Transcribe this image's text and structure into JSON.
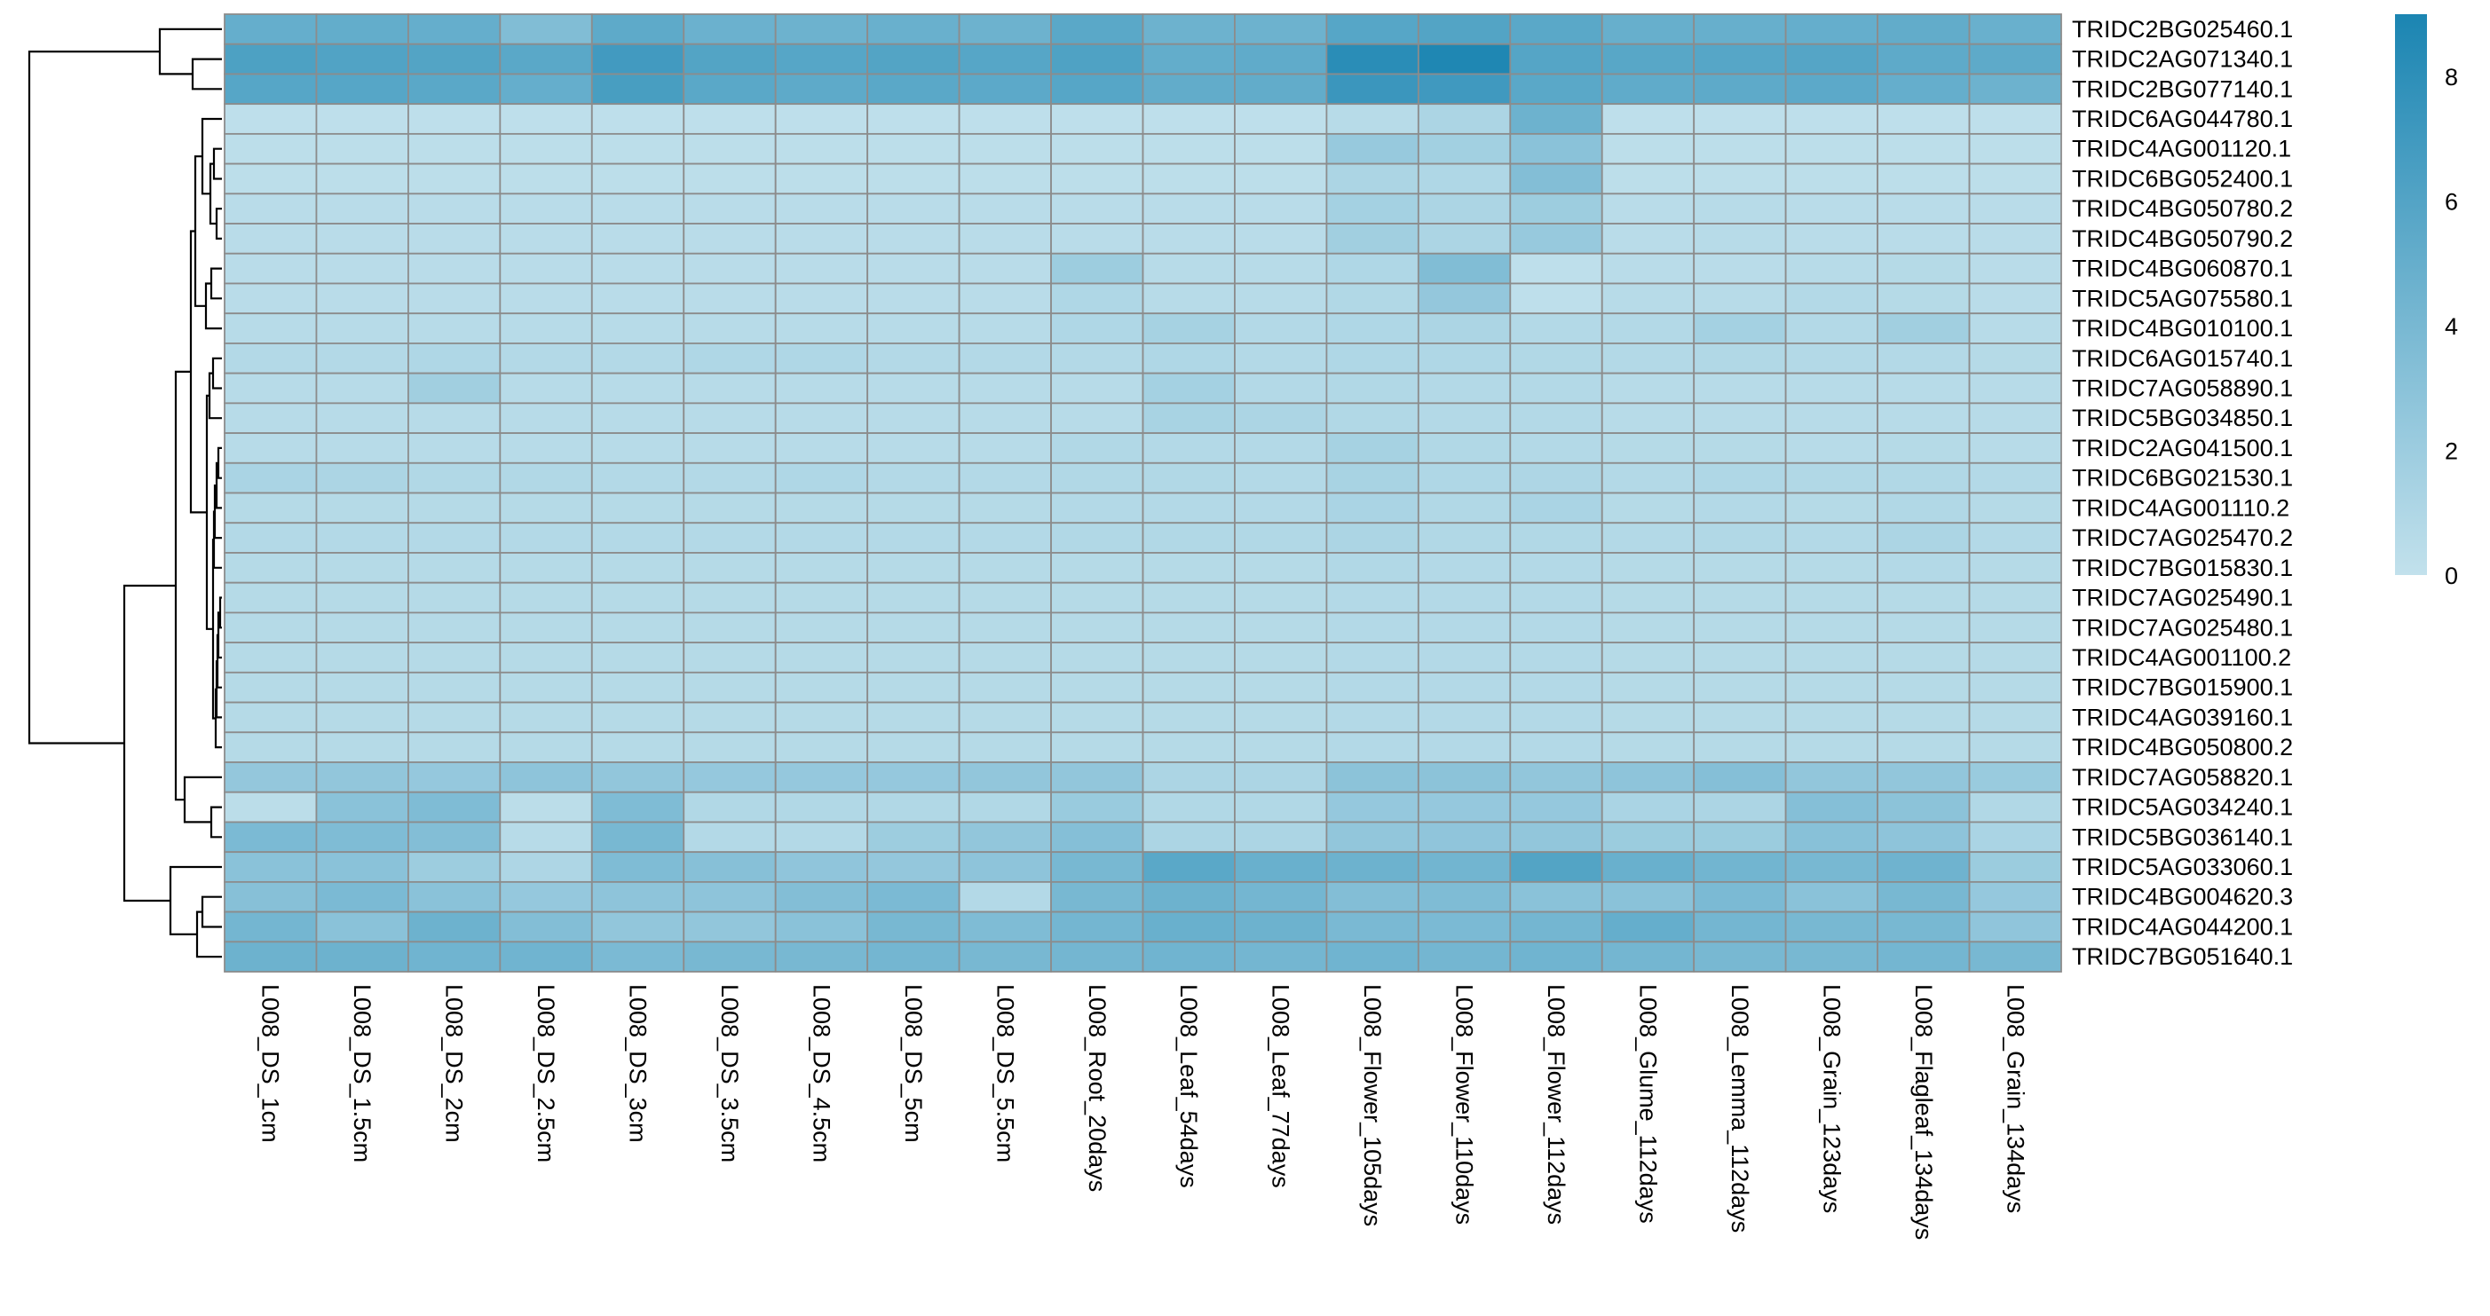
{
  "colors": {
    "low": "#c2e1ec",
    "high": "#1b85b2",
    "grid": "#8c8c8c",
    "background": "#ffffff",
    "dendrogram": "#000000"
  },
  "chart_data": {
    "type": "heatmap",
    "title": "",
    "rows": [
      "TRIDC2BG025460.1",
      "TRIDC2AG071340.1",
      "TRIDC2BG077140.1",
      "TRIDC6AG044780.1",
      "TRIDC4AG001120.1",
      "TRIDC6BG052400.1",
      "TRIDC4BG050780.2",
      "TRIDC4BG050790.2",
      "TRIDC4BG060870.1",
      "TRIDC5AG075580.1",
      "TRIDC4BG010100.1",
      "TRIDC6AG015740.1",
      "TRIDC7AG058890.1",
      "TRIDC5BG034850.1",
      "TRIDC2AG041500.1",
      "TRIDC6BG021530.1",
      "TRIDC4AG001110.2",
      "TRIDC7AG025470.2",
      "TRIDC7BG015830.1",
      "TRIDC7AG025490.1",
      "TRIDC7AG025480.1",
      "TRIDC4AG001100.2",
      "TRIDC7BG015900.1",
      "TRIDC4AG039160.1",
      "TRIDC4BG050800.2",
      "TRIDC7AG058820.1",
      "TRIDC5AG034240.1",
      "TRIDC5BG036140.1",
      "TRIDC5AG033060.1",
      "TRIDC4BG004620.3",
      "TRIDC4AG044200.1",
      "TRIDC7BG051640.1"
    ],
    "columns": [
      "L008_DS_1cm",
      "L008_DS_1.5cm",
      "L008_DS_2cm",
      "L008_DS_2.5cm",
      "L008_DS_3cm",
      "L008_DS_3.5cm",
      "L008_DS_4.5cm",
      "L008_DS_5cm",
      "L008_DS_5.5cm",
      "L008_Root_20days",
      "L008_Leaf_54days",
      "L008_Leaf_77days",
      "L008_Flower_105days",
      "L008_Flower_110days",
      "L008_Flower_112days",
      "L008_Glume_112days",
      "L008_Lemma_112days",
      "L008_Grain_123days",
      "L008_Flagleaf_134days",
      "L008_Grain_134days"
    ],
    "values": [
      [
        5.0,
        5.1,
        5.0,
        3.5,
        5.4,
        4.7,
        4.6,
        4.8,
        4.6,
        5.6,
        4.6,
        4.6,
        5.8,
        6.0,
        5.6,
        4.9,
        4.9,
        5.0,
        5.2,
        4.8
      ],
      [
        6.3,
        6.1,
        6.0,
        5.6,
        6.9,
        6.0,
        5.8,
        6.0,
        5.8,
        6.2,
        5.1,
        5.3,
        8.2,
        8.8,
        5.9,
        5.7,
        5.8,
        5.9,
        5.4,
        5.4
      ],
      [
        5.8,
        5.8,
        5.6,
        5.0,
        6.6,
        5.6,
        5.4,
        5.6,
        5.5,
        5.8,
        5.2,
        5.2,
        7.3,
        7.0,
        5.6,
        5.3,
        5.4,
        5.5,
        5.0,
        4.6
      ],
      [
        0.2,
        0.2,
        0.2,
        0.2,
        0.2,
        0.2,
        0.2,
        0.2,
        0.2,
        0.2,
        0.2,
        0.2,
        0.6,
        1.2,
        4.6,
        0.2,
        0.2,
        0.2,
        0.2,
        0.2
      ],
      [
        0.3,
        0.3,
        0.3,
        0.3,
        0.3,
        0.3,
        0.3,
        0.3,
        0.3,
        0.3,
        0.3,
        0.3,
        2.3,
        1.7,
        3.0,
        0.3,
        0.3,
        0.3,
        0.3,
        0.3
      ],
      [
        0.3,
        0.3,
        0.3,
        0.3,
        0.3,
        0.3,
        0.3,
        0.3,
        0.3,
        0.3,
        0.3,
        0.3,
        1.2,
        1.0,
        3.4,
        0.3,
        0.3,
        0.3,
        0.3,
        0.3
      ],
      [
        0.5,
        0.5,
        0.5,
        0.5,
        0.5,
        0.5,
        0.5,
        0.5,
        0.5,
        0.5,
        0.5,
        0.5,
        1.6,
        1.2,
        2.0,
        0.5,
        0.6,
        0.5,
        0.5,
        0.5
      ],
      [
        0.5,
        0.5,
        0.5,
        0.5,
        0.5,
        0.5,
        0.5,
        0.5,
        0.5,
        0.5,
        0.5,
        0.5,
        1.8,
        1.2,
        2.3,
        0.5,
        0.6,
        0.5,
        0.5,
        0.5
      ],
      [
        0.5,
        0.5,
        0.5,
        0.5,
        0.5,
        0.5,
        0.5,
        0.5,
        0.5,
        2.0,
        0.6,
        0.6,
        1.0,
        3.5,
        0.2,
        0.5,
        0.5,
        0.6,
        0.7,
        0.5
      ],
      [
        0.5,
        0.5,
        0.5,
        0.5,
        0.5,
        0.5,
        0.5,
        0.5,
        0.5,
        1.0,
        0.6,
        0.6,
        0.9,
        2.5,
        0.2,
        0.6,
        0.6,
        0.8,
        0.7,
        0.5
      ],
      [
        0.6,
        0.6,
        0.6,
        0.6,
        0.6,
        0.6,
        0.6,
        0.6,
        0.6,
        1.0,
        1.5,
        0.8,
        1.0,
        1.2,
        0.8,
        0.8,
        1.6,
        0.8,
        1.8,
        0.6
      ],
      [
        0.8,
        0.8,
        1.0,
        0.8,
        0.8,
        1.0,
        1.0,
        0.8,
        0.8,
        0.8,
        1.0,
        0.8,
        1.0,
        1.0,
        0.9,
        0.8,
        0.9,
        0.8,
        0.8,
        0.7
      ],
      [
        0.6,
        0.6,
        1.8,
        0.6,
        0.6,
        0.6,
        0.6,
        0.6,
        0.6,
        0.6,
        1.6,
        0.8,
        0.9,
        0.8,
        0.8,
        0.6,
        0.6,
        0.6,
        0.6,
        0.6
      ],
      [
        0.6,
        0.6,
        0.6,
        0.6,
        0.6,
        0.6,
        0.6,
        0.6,
        0.6,
        0.6,
        1.4,
        1.2,
        0.9,
        0.8,
        0.8,
        0.6,
        0.6,
        0.6,
        0.6,
        0.6
      ],
      [
        0.6,
        0.6,
        0.6,
        0.6,
        0.6,
        0.6,
        0.6,
        0.6,
        0.6,
        0.9,
        0.8,
        0.8,
        1.5,
        0.9,
        0.8,
        0.7,
        0.7,
        0.6,
        0.7,
        0.6
      ],
      [
        1.3,
        1.2,
        0.9,
        0.9,
        0.8,
        0.8,
        1.0,
        0.8,
        0.8,
        0.9,
        0.9,
        0.8,
        1.4,
        1.0,
        1.1,
        0.8,
        1.0,
        0.9,
        0.9,
        0.8
      ],
      [
        0.7,
        0.7,
        0.7,
        0.7,
        0.7,
        0.7,
        0.7,
        0.7,
        0.7,
        0.8,
        0.8,
        0.8,
        1.3,
        0.9,
        1.3,
        0.7,
        0.8,
        0.7,
        0.9,
        0.7
      ],
      [
        0.8,
        0.8,
        0.8,
        0.8,
        0.8,
        0.8,
        0.8,
        0.8,
        0.8,
        0.9,
        0.9,
        0.9,
        1.2,
        0.9,
        0.9,
        0.8,
        0.9,
        0.8,
        1.2,
        0.8
      ],
      [
        0.7,
        0.7,
        0.7,
        0.7,
        0.7,
        0.7,
        0.7,
        0.7,
        0.7,
        0.7,
        0.7,
        0.7,
        0.9,
        0.8,
        0.8,
        0.7,
        0.7,
        0.7,
        0.8,
        0.7
      ],
      [
        0.7,
        0.7,
        0.7,
        0.7,
        0.7,
        0.7,
        0.7,
        0.7,
        0.7,
        0.7,
        0.7,
        0.7,
        0.8,
        0.8,
        0.8,
        0.7,
        0.7,
        0.7,
        0.7,
        0.7
      ],
      [
        0.7,
        0.7,
        0.7,
        0.7,
        0.7,
        0.7,
        0.7,
        0.7,
        0.7,
        0.7,
        0.7,
        0.7,
        0.8,
        0.8,
        0.8,
        0.7,
        0.7,
        0.7,
        0.7,
        0.7
      ],
      [
        0.7,
        0.7,
        0.7,
        0.7,
        0.7,
        0.7,
        0.7,
        0.7,
        0.7,
        0.7,
        0.7,
        0.7,
        0.8,
        0.8,
        0.8,
        0.7,
        0.7,
        0.7,
        0.7,
        0.7
      ],
      [
        0.7,
        0.7,
        0.7,
        0.7,
        0.7,
        0.7,
        0.7,
        0.7,
        0.7,
        0.7,
        0.7,
        0.7,
        0.8,
        0.8,
        0.8,
        0.7,
        0.7,
        0.7,
        0.7,
        0.7
      ],
      [
        0.7,
        0.7,
        0.7,
        0.7,
        0.7,
        0.7,
        0.7,
        0.7,
        0.7,
        0.7,
        0.7,
        0.7,
        0.8,
        0.8,
        0.8,
        0.7,
        0.7,
        0.7,
        0.7,
        0.7
      ],
      [
        0.7,
        0.7,
        0.7,
        0.7,
        0.7,
        0.7,
        0.7,
        0.7,
        0.7,
        0.7,
        0.7,
        0.7,
        0.8,
        0.8,
        0.8,
        0.7,
        0.7,
        0.7,
        0.7,
        0.7
      ],
      [
        2.5,
        2.6,
        2.4,
        2.8,
        2.6,
        2.4,
        2.4,
        2.4,
        2.6,
        2.6,
        1.2,
        1.2,
        2.9,
        2.9,
        2.6,
        2.8,
        3.3,
        2.6,
        2.6,
        2.2
      ],
      [
        0.4,
        3.0,
        3.6,
        0.4,
        3.6,
        0.9,
        0.9,
        0.9,
        0.9,
        2.2,
        0.9,
        0.9,
        2.4,
        2.4,
        2.4,
        1.3,
        1.2,
        3.3,
        2.9,
        0.9
      ],
      [
        3.8,
        3.6,
        3.4,
        0.6,
        4.0,
        0.8,
        0.8,
        2.0,
        2.6,
        3.3,
        1.2,
        1.2,
        2.6,
        2.7,
        2.6,
        2.1,
        2.1,
        3.1,
        2.8,
        1.3
      ],
      [
        3.0,
        3.0,
        2.0,
        1.1,
        3.6,
        3.2,
        2.7,
        2.5,
        2.8,
        4.0,
        5.6,
        4.8,
        4.6,
        4.3,
        6.0,
        4.8,
        4.3,
        4.0,
        4.5,
        2.1
      ],
      [
        3.2,
        3.8,
        3.0,
        2.4,
        2.8,
        2.8,
        3.4,
        3.8,
        0.8,
        4.0,
        4.6,
        4.2,
        3.4,
        3.6,
        3.0,
        3.0,
        3.8,
        3.0,
        4.0,
        2.4
      ],
      [
        4.2,
        3.0,
        4.6,
        3.4,
        2.6,
        2.6,
        3.0,
        4.0,
        3.6,
        4.2,
        4.8,
        4.6,
        3.9,
        3.8,
        4.2,
        5.0,
        4.2,
        4.0,
        4.0,
        2.7
      ],
      [
        4.6,
        4.6,
        4.4,
        4.4,
        3.8,
        4.0,
        4.0,
        4.2,
        4.0,
        4.2,
        4.4,
        4.2,
        4.4,
        4.2,
        4.4,
        4.2,
        4.0,
        4.0,
        4.2,
        4.0
      ]
    ],
    "colorbar": {
      "min": 0,
      "max": 9,
      "ticks": [
        0,
        2,
        4,
        6,
        8
      ]
    }
  }
}
